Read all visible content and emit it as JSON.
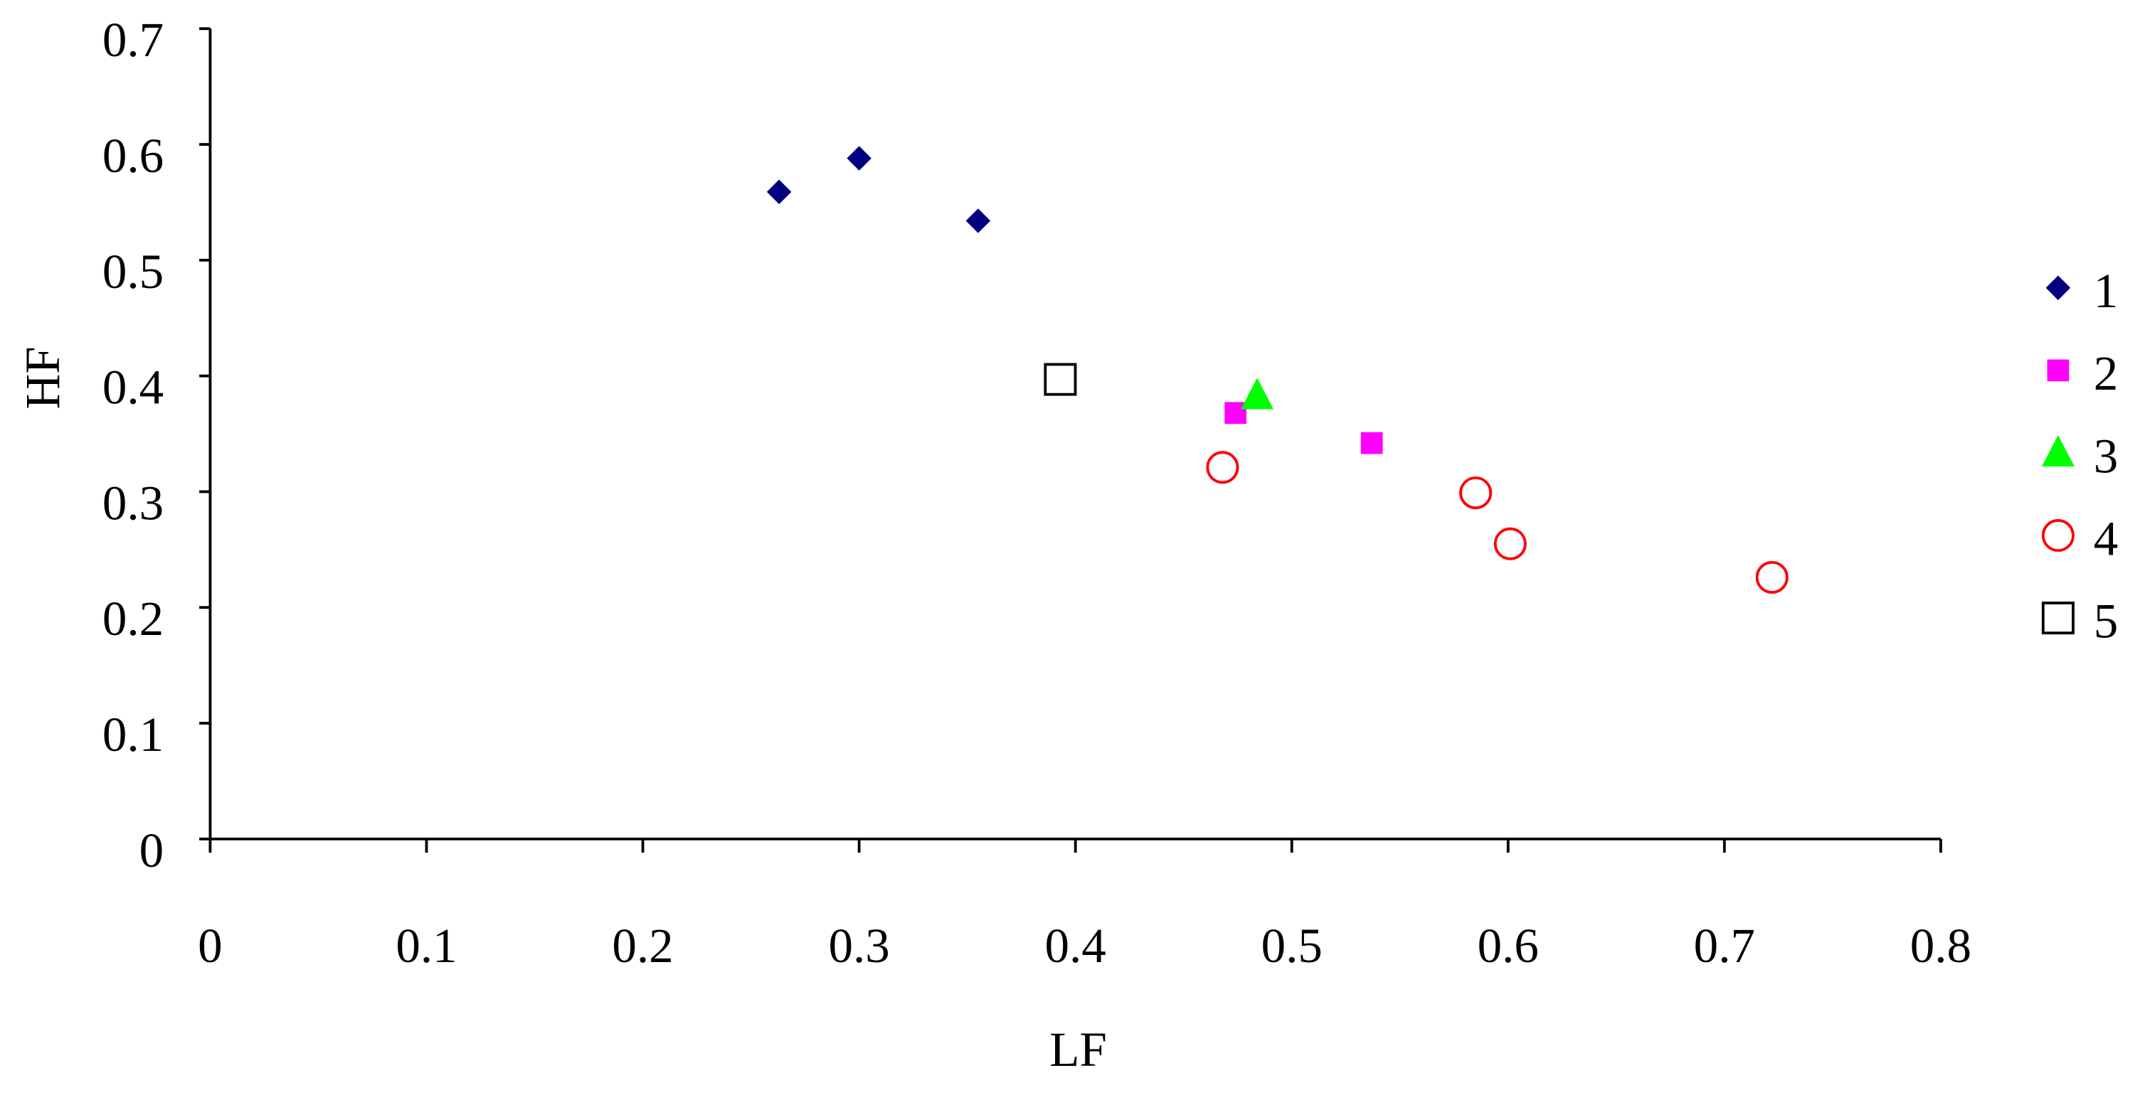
{
  "chart_data": {
    "type": "scatter",
    "x_label": "LF",
    "y_label": "HF",
    "xlim": [
      0,
      0.8
    ],
    "xticks": [
      0,
      0.1,
      0.2,
      0.3,
      0.4,
      0.5,
      0.6,
      0.7,
      0.8
    ],
    "ylim": [
      0,
      0.7
    ],
    "yticks": [
      0,
      0.1,
      0.2,
      0.3,
      0.4,
      0.5,
      0.6,
      0.7
    ],
    "grid": false,
    "legend": "right",
    "series": [
      {
        "name": "1",
        "color": "#000080",
        "marker": "diamond",
        "x": [
          0.263,
          0.3,
          0.355
        ],
        "values": [
          0.559,
          0.588,
          0.534
        ]
      },
      {
        "name": "2",
        "color": "#ff00ff",
        "marker": "square",
        "x": [
          0.474,
          0.537
        ],
        "values": [
          0.368,
          0.342
        ]
      },
      {
        "name": "3",
        "color": "#00ff00",
        "marker": "triangle",
        "x": [
          0.484
        ],
        "values": [
          0.383
        ]
      },
      {
        "name": "4",
        "color": "#ff0000",
        "marker": "circle-open",
        "x": [
          0.468,
          0.585,
          0.601,
          0.722
        ],
        "values": [
          0.321,
          0.299,
          0.255,
          0.226
        ]
      },
      {
        "name": "5",
        "color": "#000000",
        "marker": "square-open",
        "x": [
          0.393
        ],
        "values": [
          0.397
        ]
      }
    ]
  }
}
